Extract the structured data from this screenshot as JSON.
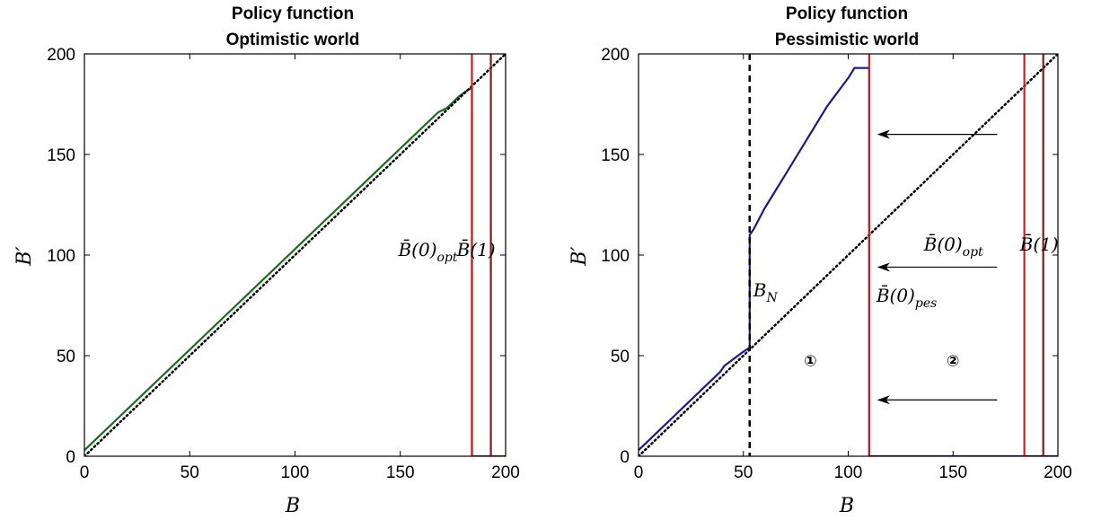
{
  "chart_data": [
    {
      "type": "line",
      "title": [
        "Policy function",
        "Optimistic world"
      ],
      "xlabel": "B",
      "ylabel": "B′",
      "xlim": [
        0,
        200
      ],
      "ylim": [
        0,
        200
      ],
      "xticks": [
        "0",
        "50",
        "100",
        "150",
        "200"
      ],
      "yticks": [
        "0",
        "50",
        "100",
        "150",
        "200"
      ],
      "grid": false,
      "series": [
        {
          "color": "#1f6b1f",
          "style": "solid",
          "x": [
            0,
            50,
            100,
            150,
            168,
            172,
            178,
            182,
            184,
            184,
            192,
            200
          ],
          "y": [
            3,
            53,
            103,
            153,
            171,
            173,
            179,
            182,
            183,
            0,
            0,
            0
          ]
        },
        {
          "color": "#000000",
          "style": "dotted",
          "x": [
            0,
            200
          ],
          "y": [
            0,
            200
          ]
        }
      ],
      "vlines": [
        {
          "x": 184,
          "color": "#cc1f1f",
          "label": {
            "main": "B̄(0)",
            "sub": "opt"
          }
        },
        {
          "x": 193,
          "color": "#7a1e1e",
          "label": {
            "main": "B̄(1)",
            "sub": ""
          }
        }
      ]
    },
    {
      "type": "line",
      "title": [
        "Policy function",
        "Pessimistic world"
      ],
      "xlabel": "B",
      "ylabel": "B′",
      "xlim": [
        0,
        200
      ],
      "ylim": [
        0,
        200
      ],
      "xticks": [
        "0",
        "50",
        "100",
        "150",
        "200"
      ],
      "yticks": [
        "0",
        "50",
        "100",
        "150",
        "200"
      ],
      "grid": false,
      "series": [
        {
          "color": "#1a1a8c",
          "style": "solid",
          "x": [
            0,
            20,
            39,
            41,
            50,
            53,
            53,
            55,
            60,
            70,
            80,
            90,
            100,
            103,
            110,
            110,
            200
          ],
          "y": [
            3,
            23,
            42,
            45,
            52,
            54,
            110,
            113,
            123,
            140,
            157,
            174,
            188,
            193,
            193,
            0,
            0
          ]
        },
        {
          "color": "#000000",
          "style": "dotted",
          "x": [
            0,
            200
          ],
          "y": [
            0,
            200
          ]
        }
      ],
      "vlines": [
        {
          "x": 53,
          "color": "#000000",
          "style": "dashed",
          "label": {
            "main": "B",
            "sub": "N"
          }
        },
        {
          "x": 110,
          "color": "#cc1f1f",
          "label": {
            "main": "B̄(0)",
            "sub": "pes"
          }
        },
        {
          "x": 184,
          "color": "#cc1f1f",
          "label": {
            "main": "B̄(0)",
            "sub": "opt"
          }
        },
        {
          "x": 193,
          "color": "#7a1e1e",
          "label": {
            "main": "B̄(1)",
            "sub": ""
          }
        }
      ],
      "arrows": [
        {
          "from": [
            171,
            160
          ],
          "to": [
            110,
            160
          ]
        },
        {
          "from": [
            171,
            94
          ],
          "to": [
            110,
            94
          ]
        },
        {
          "from": [
            171,
            28
          ],
          "to": [
            110,
            28
          ]
        }
      ],
      "regions": [
        {
          "label": "①",
          "x": 82,
          "y": 47
        },
        {
          "label": "②",
          "x": 150,
          "y": 47
        }
      ]
    }
  ]
}
